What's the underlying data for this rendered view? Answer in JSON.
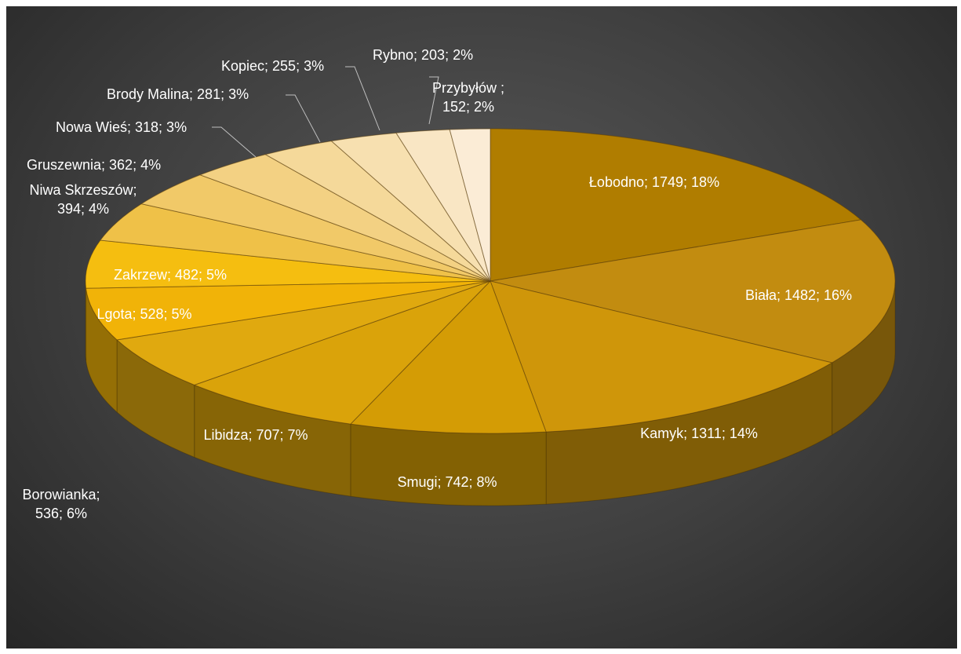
{
  "chart_data": {
    "type": "pie",
    "title": "",
    "three_d": true,
    "label_format": "category; value; percent",
    "slices": [
      {
        "category": "Łobodno",
        "value": 1749,
        "percent": 18,
        "label": "Łobodno; 1749; 18%",
        "color": "#b07d00"
      },
      {
        "category": "Biała",
        "value": 1482,
        "percent": 16,
        "label": "Biała; 1482; 16%",
        "color": "#c28c10"
      },
      {
        "category": "Kamyk",
        "value": 1311,
        "percent": 14,
        "label": "Kamyk; 1311; 14%",
        "color": "#cf960a"
      },
      {
        "category": "Smugi",
        "value": 742,
        "percent": 8,
        "label": "Smugi; 742; 8%",
        "color": "#d49c05"
      },
      {
        "category": "Libidza",
        "value": 707,
        "percent": 7,
        "label": "Libidza; 707; 7%",
        "color": "#daa30a"
      },
      {
        "category": "Borowianka",
        "value": 536,
        "percent": 6,
        "label": "Borowianka; 536; 6%",
        "color": "#e0a90f"
      },
      {
        "category": "Lgota",
        "value": 528,
        "percent": 5,
        "label": "Lgota; 528; 5%",
        "color": "#f1b308"
      },
      {
        "category": "Zakrzew",
        "value": 482,
        "percent": 5,
        "label": "Zakrzew; 482; 5%",
        "color": "#f5be10"
      },
      {
        "category": "Niwa Skrzeszów",
        "value": 394,
        "percent": 4,
        "label": "Niwa Skrzeszów; 394; 4%",
        "color": "#efc148"
      },
      {
        "category": "Gruszewnia",
        "value": 362,
        "percent": 4,
        "label": "Gruszewnia; 362; 4%",
        "color": "#f1c968"
      },
      {
        "category": "Nowa Wieś",
        "value": 318,
        "percent": 3,
        "label": "Nowa Wieś; 318; 3%",
        "color": "#f3d183"
      },
      {
        "category": "Brody Malina",
        "value": 281,
        "percent": 3,
        "label": "Brody Malina; 281; 3%",
        "color": "#f5d99a"
      },
      {
        "category": "Kopiec",
        "value": 255,
        "percent": 3,
        "label": "Kopiec; 255; 3%",
        "color": "#f7e0b0"
      },
      {
        "category": "Rybno",
        "value": 203,
        "percent": 2,
        "label": "Rybno; 203; 2%",
        "color": "#f9e6c4"
      },
      {
        "category": "Przybyłów",
        "value": 152,
        "percent": 2,
        "label": "Przybyłów ; 152; 2%",
        "color": "#fbecd6"
      }
    ]
  }
}
